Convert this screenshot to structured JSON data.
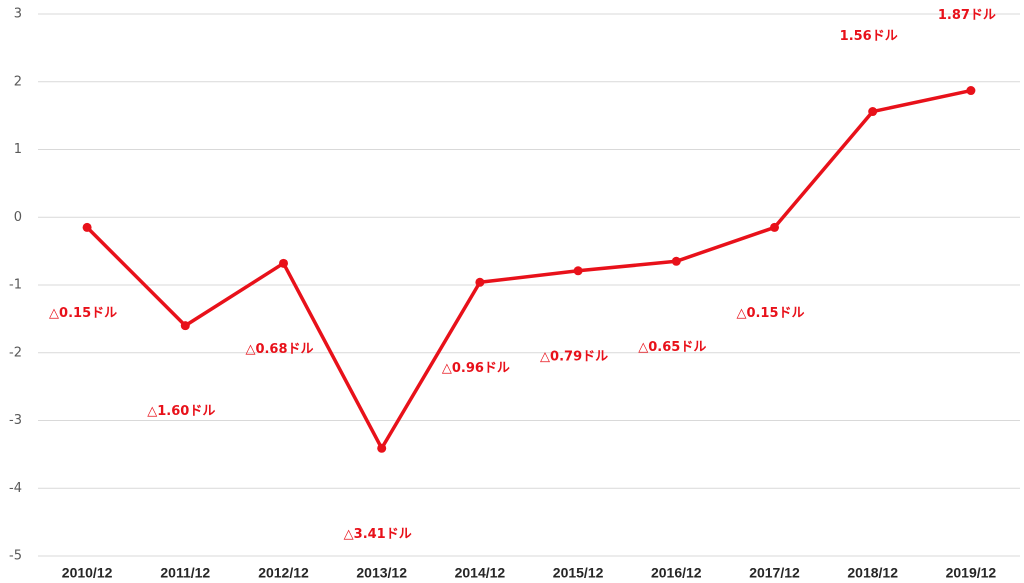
{
  "chart_data": {
    "type": "line",
    "categories": [
      "2010/12",
      "2011/12",
      "2012/12",
      "2013/12",
      "2014/12",
      "2015/12",
      "2016/12",
      "2017/12",
      "2018/12",
      "2019/12"
    ],
    "series": [
      {
        "color": "#e8111a",
        "values": [
          -0.15,
          -1.6,
          -0.68,
          -3.41,
          -0.96,
          -0.79,
          -0.65,
          -0.15,
          1.56,
          1.87
        ],
        "value_labels": [
          "△0.15ドル",
          "△1.60ドル",
          "△0.68ドル",
          "△3.41ドル",
          "△0.96ドル",
          "△0.79ドル",
          "△0.65ドル",
          "△0.15ドル",
          "1.56ドル",
          "1.87ドル"
        ]
      }
    ],
    "ylim": [
      -5,
      3
    ],
    "yticks": [
      -5,
      -4,
      -3,
      -2,
      -1,
      0,
      1,
      2,
      3
    ],
    "grid": true
  }
}
